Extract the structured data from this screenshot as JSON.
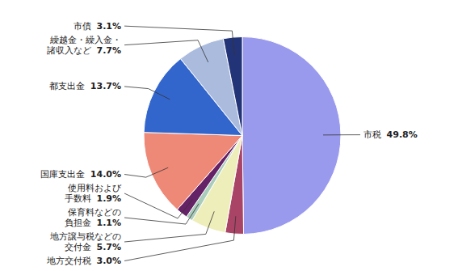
{
  "chart_data": {
    "type": "pie",
    "categories": [
      "市税",
      "地方交付税",
      "地方譲与税などの\n交付金",
      "保育料などの\n負担金",
      "使用料および\n手数料",
      "国庫支出金",
      "都支出金",
      "繰越金・繰入金・\n諸収入など",
      "市債"
    ],
    "values": [
      49.8,
      3.0,
      5.7,
      1.1,
      1.9,
      14.0,
      13.7,
      7.7,
      3.1
    ],
    "value_labels": [
      "49.8%",
      "3.0%",
      "5.7%",
      "1.1%",
      "1.9%",
      "14.0%",
      "13.7%",
      "7.7%",
      "3.1%"
    ],
    "colors": [
      "#9999ee",
      "#aa4466",
      "#eeeebb",
      "#aaccbb",
      "#662266",
      "#ee8877",
      "#3366cc",
      "#aabbdd",
      "#223377"
    ],
    "data_labels": true
  }
}
